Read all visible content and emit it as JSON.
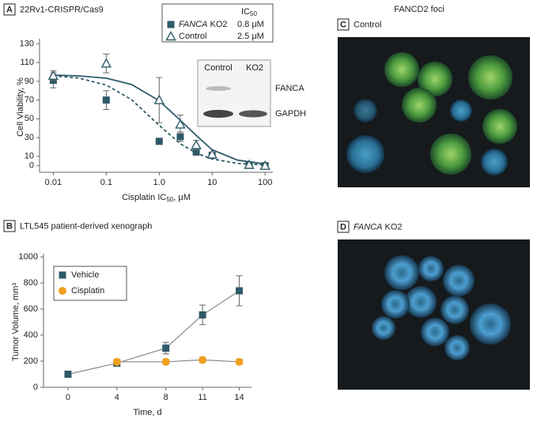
{
  "chart_data": [
    {
      "type": "scatter",
      "panel": "A",
      "title": "22Rv1-CRISPR/Cas9",
      "x_label": "Cisplatin IC50, μM",
      "y_label": "Cell Viability, %",
      "x_scale": "log",
      "xlim": [
        0.0055,
        140
      ],
      "xticks": [
        0.01,
        0.1,
        {
          "value": 1,
          "label": "1.0"
        },
        10,
        100
      ],
      "ylim": [
        -7,
        132
      ],
      "yticks": [
        0,
        10,
        30,
        50,
        70,
        90,
        110,
        130
      ],
      "legend_title": "IC50",
      "x": [
        0.01,
        0.1,
        1,
        2.5,
        5,
        10,
        50,
        100
      ],
      "series": [
        {
          "name": "FANCA KO2",
          "color": "#2f5a68",
          "marker": "square",
          "line_style": "dashed",
          "values": [
            91,
            70,
            26,
            31,
            15,
            11,
            1,
            0
          ],
          "errors": [
            8,
            10,
            2,
            5,
            4,
            2,
            1,
            1
          ],
          "ic50": 0.8,
          "ic50_label": "0.8 μM",
          "fit": {
            "x": [
              0.01,
              0.03,
              0.1,
              0.3,
              1,
              2.5,
              5,
              10,
              30,
              100
            ],
            "values": [
              95.8,
              93.5,
              86,
              70.5,
              43,
              23.5,
              13.4,
              7.2,
              2.5,
              0.8
            ]
          }
        },
        {
          "name": "Control",
          "color": "#2f5a68",
          "marker": "triangle",
          "line_style": "solid",
          "values": [
            96,
            109,
            70,
            44,
            22,
            12,
            1,
            0
          ],
          "errors": [
            5,
            10,
            24,
            10,
            5,
            2,
            1,
            1
          ],
          "ic50": 2.5,
          "ic50_label": "2.5 μM",
          "fit": {
            "x": [
              0.01,
              0.03,
              0.1,
              0.3,
              1,
              2.5,
              5,
              10,
              30,
              100
            ],
            "values": [
              96.6,
              95.8,
              93.3,
              86.6,
              69.3,
              48.5,
              32.3,
              17,
              6,
              1.8
            ]
          }
        }
      ],
      "inset": {
        "columns": [
          "Control",
          "KO2"
        ],
        "rows": [
          "FANCA",
          "GAPDH"
        ]
      }
    },
    {
      "type": "line",
      "panel": "B",
      "title": "LTL545 patient-derived xenograph",
      "x_label": "Time, d",
      "y_label": "Tumor Volume, mm³",
      "xlim": [
        -2,
        15
      ],
      "xticks": [
        0,
        4,
        8,
        11,
        14
      ],
      "ylim": [
        0,
        1000
      ],
      "yticks": [
        0,
        200,
        400,
        600,
        800,
        1000
      ],
      "legend": "top-left",
      "x": [
        0,
        4,
        8,
        11,
        14
      ],
      "series": [
        {
          "name": "Vehicle",
          "color": "#2f5a68",
          "marker": "square",
          "values": [
            100,
            185,
            300,
            555,
            740
          ],
          "errors": [
            10,
            15,
            45,
            75,
            115
          ]
        },
        {
          "name": "Cisplatin",
          "color": "#f0a020",
          "marker": "circle",
          "values": [
            null,
            195,
            195,
            210,
            195
          ],
          "errors": [
            null,
            20,
            18,
            20,
            20
          ]
        }
      ]
    }
  ],
  "panels": {
    "heading": "FANCD2 foci",
    "C": {
      "letter": "C",
      "label": "Control"
    },
    "D": {
      "letter": "D",
      "label": "FANCA KO2"
    }
  }
}
